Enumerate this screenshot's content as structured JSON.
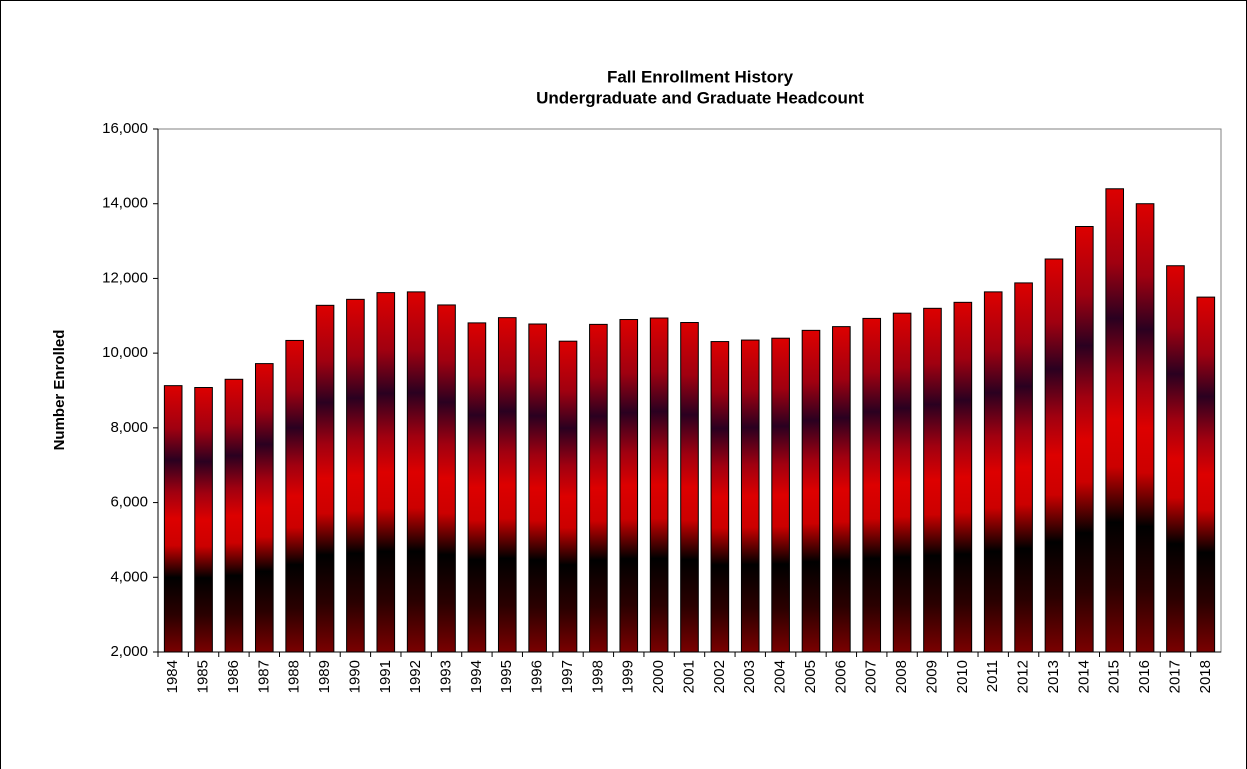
{
  "chart_data": {
    "type": "bar",
    "title": "Fall Enrollment History",
    "subtitle": "Undergraduate and Graduate Headcount",
    "y_label": "Number Enrolled",
    "categories": [
      "1984",
      "1985",
      "1986",
      "1987",
      "1988",
      "1989",
      "1990",
      "1991",
      "1992",
      "1993",
      "1994",
      "1995",
      "1996",
      "1997",
      "1998",
      "1999",
      "2000",
      "2001",
      "2002",
      "2003",
      "2004",
      "2005",
      "2006",
      "2007",
      "2008",
      "2009",
      "2010",
      "2011",
      "2012",
      "2013",
      "2014",
      "2015",
      "2016",
      "2017",
      "2018"
    ],
    "values": [
      9130,
      9080,
      9300,
      9720,
      10340,
      11280,
      11440,
      11620,
      11640,
      11290,
      10810,
      10950,
      10780,
      10320,
      10770,
      10900,
      10940,
      10820,
      10310,
      10350,
      10400,
      10610,
      10710,
      10930,
      11070,
      11200,
      11360,
      11640,
      11880,
      12520,
      13390,
      14400,
      14000,
      12340,
      11500
    ],
    "color": "#cc0000",
    "ylim": [
      2000,
      16000
    ],
    "yticks": [
      {
        "value": 2000,
        "label": "2,000"
      },
      {
        "value": 4000,
        "label": "4,000"
      },
      {
        "value": 6000,
        "label": "6,000"
      },
      {
        "value": 8000,
        "label": "8,000"
      },
      {
        "value": 10000,
        "label": "10,000"
      },
      {
        "value": 12000,
        "label": "12,000"
      },
      {
        "value": 14000,
        "label": "14,000"
      },
      {
        "value": 16000,
        "label": "16,000"
      }
    ],
    "grid": false
  }
}
